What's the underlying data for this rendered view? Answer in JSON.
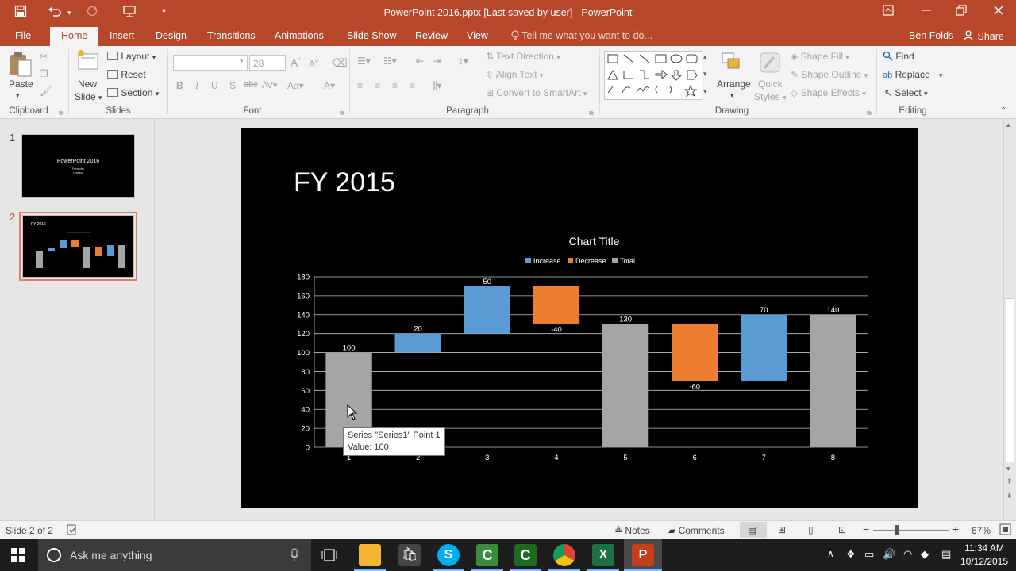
{
  "window": {
    "title": "PowerPoint 2016.pptx [Last saved by user] - PowerPoint"
  },
  "tabs": [
    "File",
    "Home",
    "Insert",
    "Design",
    "Transitions",
    "Animations",
    "Slide Show",
    "Review",
    "View"
  ],
  "active_tab": "Home",
  "tell_me": "Tell me what you want to do...",
  "user_name": "Ben Folds",
  "share_label": "Share",
  "ribbon": {
    "clipboard": {
      "label": "Clipboard",
      "paste": "Paste"
    },
    "slides": {
      "label": "Slides",
      "new_slide_line1": "New",
      "new_slide_line2": "Slide",
      "layout": "Layout",
      "reset": "Reset",
      "section": "Section"
    },
    "font": {
      "label": "Font",
      "size": "28"
    },
    "paragraph": {
      "label": "Paragraph",
      "text_direction": "Text Direction",
      "align_text": "Align Text",
      "convert_smartart": "Convert to SmartArt"
    },
    "drawing": {
      "label": "Drawing",
      "arrange": "Arrange",
      "quick_styles_line1": "Quick",
      "quick_styles_line2": "Styles",
      "shape_fill": "Shape Fill",
      "shape_outline": "Shape Outline",
      "shape_effects": "Shape Effects"
    },
    "editing": {
      "label": "Editing",
      "find": "Find",
      "replace": "Replace",
      "select": "Select"
    }
  },
  "thumbnails": [
    {
      "number": "1",
      "title": "PowerPoint 2016",
      "subtitle_line1": "Presenter",
      "subtitle_line2": "Location"
    },
    {
      "number": "2",
      "title": "FY 2015"
    }
  ],
  "slide": {
    "title": "FY 2015"
  },
  "chart_data": {
    "type": "bar",
    "subtype": "waterfall",
    "title": "Chart Title",
    "legend": [
      "Increase",
      "Decrease",
      "Total"
    ],
    "legend_position": "top",
    "categories": [
      "1",
      "2",
      "3",
      "4",
      "5",
      "6",
      "7",
      "8"
    ],
    "values": [
      100,
      20,
      50,
      -40,
      130,
      -60,
      70,
      140
    ],
    "kinds": [
      "total",
      "increase",
      "increase",
      "decrease",
      "total",
      "decrease",
      "increase",
      "total"
    ],
    "data_labels": [
      "100",
      "20",
      "50",
      "-40",
      "130",
      "-60",
      "70",
      "140"
    ],
    "y_ticks": [
      "0",
      "20",
      "40",
      "60",
      "80",
      "100",
      "120",
      "140",
      "160",
      "180"
    ],
    "ylim": [
      0,
      180
    ],
    "grid": true,
    "colors": {
      "increase": "#5b9bd5",
      "decrease": "#ed7d31",
      "total": "#a5a5a5"
    }
  },
  "tooltip": {
    "line1": "Series \"Series1\" Point 1",
    "line2": "Value: 100"
  },
  "status": {
    "slide_of": "Slide 2 of 2",
    "notes": "Notes",
    "comments": "Comments",
    "zoom": "67%"
  },
  "taskbar": {
    "search_placeholder": "Ask me anything",
    "time": "11:34 AM",
    "date": "10/12/2015"
  },
  "accent_color": "#b7472a"
}
